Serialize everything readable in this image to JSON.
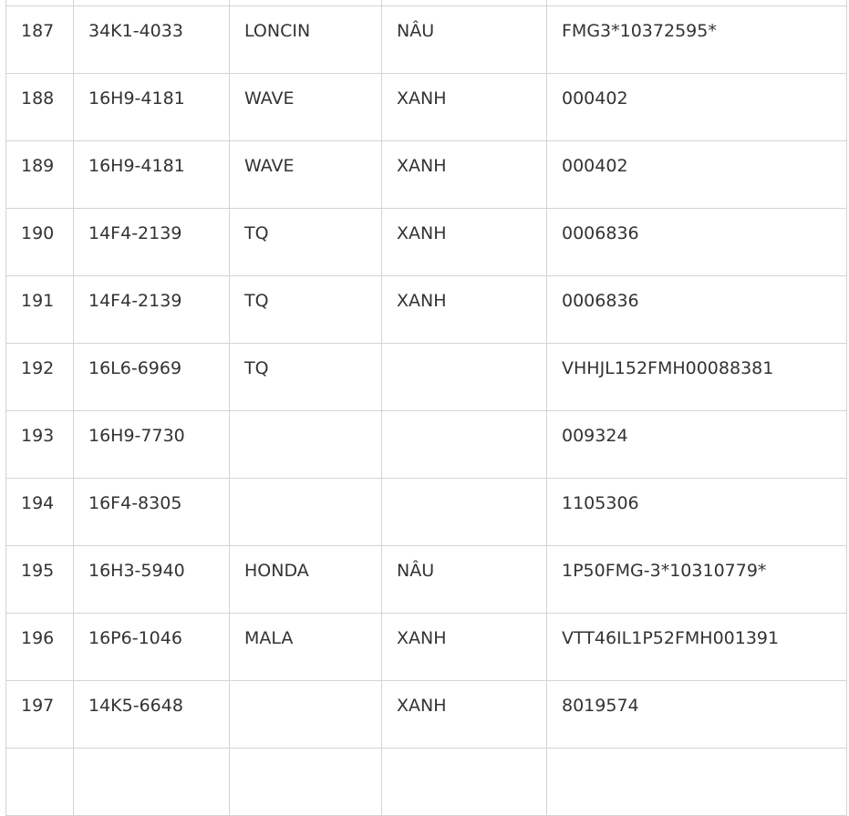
{
  "table": {
    "rows": [
      [
        "187",
        "34K1-4033",
        "LONCIN",
        "NÂU",
        "FMG3*10372595*"
      ],
      [
        "188",
        "16H9-4181",
        "WAVE",
        "XANH",
        "000402"
      ],
      [
        "189",
        "16H9-4181",
        "WAVE",
        "XANH",
        "000402"
      ],
      [
        "190",
        "14F4-2139",
        "TQ",
        "XANH",
        "0006836"
      ],
      [
        "191",
        "14F4-2139",
        "TQ",
        "XANH",
        "0006836"
      ],
      [
        "192",
        "16L6-6969",
        "TQ",
        "",
        "VHHJL152FMH00088381"
      ],
      [
        "193",
        "16H9-7730",
        "",
        "",
        "009324"
      ],
      [
        "194",
        "16F4-8305",
        "",
        "",
        "1105306"
      ],
      [
        "195",
        "16H3-5940",
        "HONDA",
        "NÂU",
        "1P50FMG-3*10310779*"
      ],
      [
        "196",
        "16P6-1046",
        "MALA",
        "XANH",
        "VTT46IL1P52FMH001391"
      ],
      [
        "197",
        "14K5-6648",
        "",
        "XANH",
        "8019574"
      ],
      [
        "",
        "",
        "",
        "",
        ""
      ]
    ]
  }
}
